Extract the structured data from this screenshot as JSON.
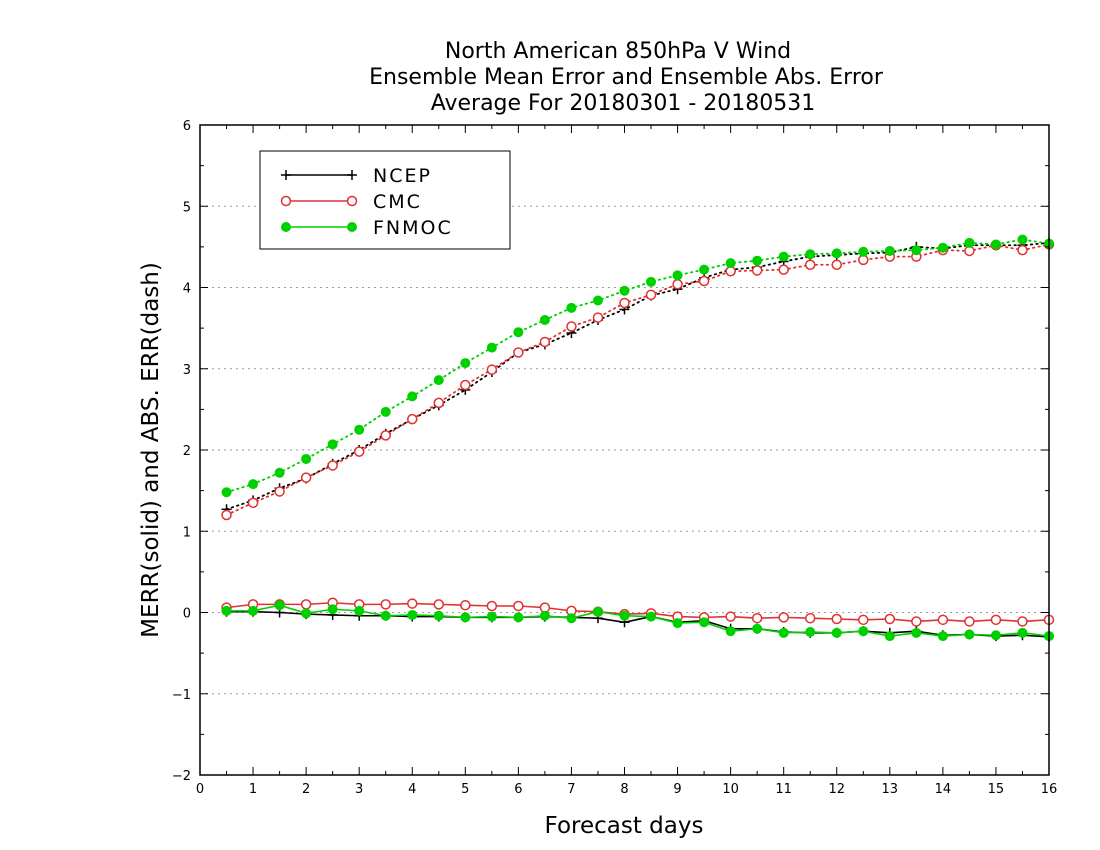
{
  "chart_data": {
    "type": "line",
    "title": [
      "North American 850hPa V Wind",
      "Ensemble Mean Error and Ensemble Abs. Error",
      "Average For 20180301 - 20180531"
    ],
    "xlabel": "Forecast days",
    "ylabel": "MERR(solid) and ABS. ERR(dash)",
    "xlim": [
      0,
      16
    ],
    "ylim": [
      -2,
      6
    ],
    "xticks": [
      "0",
      "1",
      "2",
      "3",
      "4",
      "5",
      "6",
      "7",
      "8",
      "9",
      "10",
      "11",
      "12",
      "13",
      "14",
      "15",
      "16"
    ],
    "yticks": [
      "-2",
      "-1",
      "0",
      "1",
      "2",
      "3",
      "4",
      "5",
      "6"
    ],
    "grid": true,
    "legend_position": "top-left",
    "x": [
      0.5,
      1,
      1.5,
      2,
      2.5,
      3,
      3.5,
      4,
      4.5,
      5,
      5.5,
      6,
      6.5,
      7,
      7.5,
      8,
      8.5,
      9,
      9.5,
      10,
      10.5,
      11,
      11.5,
      12,
      12.5,
      13,
      13.5,
      14,
      14.5,
      15,
      15.5,
      16
    ],
    "series": [
      {
        "name": "NCEP",
        "color": "#000000",
        "marker": "plus",
        "mean_error": [
          0.01,
          0.01,
          0.0,
          -0.02,
          -0.03,
          -0.04,
          -0.04,
          -0.05,
          -0.05,
          -0.06,
          -0.06,
          -0.06,
          -0.05,
          -0.06,
          -0.07,
          -0.12,
          -0.05,
          -0.12,
          -0.1,
          -0.2,
          -0.2,
          -0.24,
          -0.25,
          -0.25,
          -0.23,
          -0.25,
          -0.23,
          -0.28,
          -0.27,
          -0.29,
          -0.28,
          -0.3
        ],
        "abs_error": [
          1.27,
          1.38,
          1.53,
          1.65,
          1.83,
          2.0,
          2.2,
          2.38,
          2.55,
          2.74,
          2.96,
          3.2,
          3.3,
          3.44,
          3.6,
          3.73,
          3.9,
          3.98,
          4.12,
          4.22,
          4.25,
          4.32,
          4.38,
          4.4,
          4.42,
          4.43,
          4.5,
          4.48,
          4.52,
          4.52,
          4.52,
          4.55
        ]
      },
      {
        "name": "CMC",
        "color": "#e03030",
        "marker": "open-circle",
        "mean_error": [
          0.06,
          0.1,
          0.1,
          0.1,
          0.12,
          0.1,
          0.1,
          0.11,
          0.1,
          0.09,
          0.08,
          0.08,
          0.06,
          0.02,
          0.01,
          -0.02,
          -0.01,
          -0.05,
          -0.06,
          -0.05,
          -0.07,
          -0.06,
          -0.07,
          -0.08,
          -0.09,
          -0.08,
          -0.11,
          -0.09,
          -0.11,
          -0.09,
          -0.11,
          -0.09
        ],
        "abs_error": [
          1.2,
          1.35,
          1.49,
          1.66,
          1.81,
          1.98,
          2.18,
          2.38,
          2.58,
          2.8,
          2.99,
          3.2,
          3.33,
          3.52,
          3.63,
          3.81,
          3.91,
          4.04,
          4.08,
          4.2,
          4.21,
          4.22,
          4.28,
          4.28,
          4.34,
          4.38,
          4.38,
          4.46,
          4.45,
          4.52,
          4.46,
          4.53
        ]
      },
      {
        "name": "FNMOC",
        "color": "#00d000",
        "marker": "filled-circle",
        "mean_error": [
          0.02,
          0.02,
          0.09,
          -0.01,
          0.04,
          0.02,
          -0.04,
          -0.03,
          -0.04,
          -0.06,
          -0.05,
          -0.06,
          -0.04,
          -0.07,
          0.01,
          -0.04,
          -0.05,
          -0.13,
          -0.12,
          -0.23,
          -0.2,
          -0.25,
          -0.24,
          -0.25,
          -0.23,
          -0.29,
          -0.25,
          -0.29,
          -0.27,
          -0.28,
          -0.25,
          -0.29
        ],
        "abs_error": [
          1.48,
          1.58,
          1.72,
          1.89,
          2.07,
          2.25,
          2.47,
          2.66,
          2.86,
          3.07,
          3.26,
          3.45,
          3.6,
          3.75,
          3.84,
          3.96,
          4.07,
          4.15,
          4.22,
          4.3,
          4.33,
          4.38,
          4.41,
          4.42,
          4.44,
          4.45,
          4.46,
          4.49,
          4.55,
          4.53,
          4.59,
          4.54
        ]
      }
    ]
  }
}
